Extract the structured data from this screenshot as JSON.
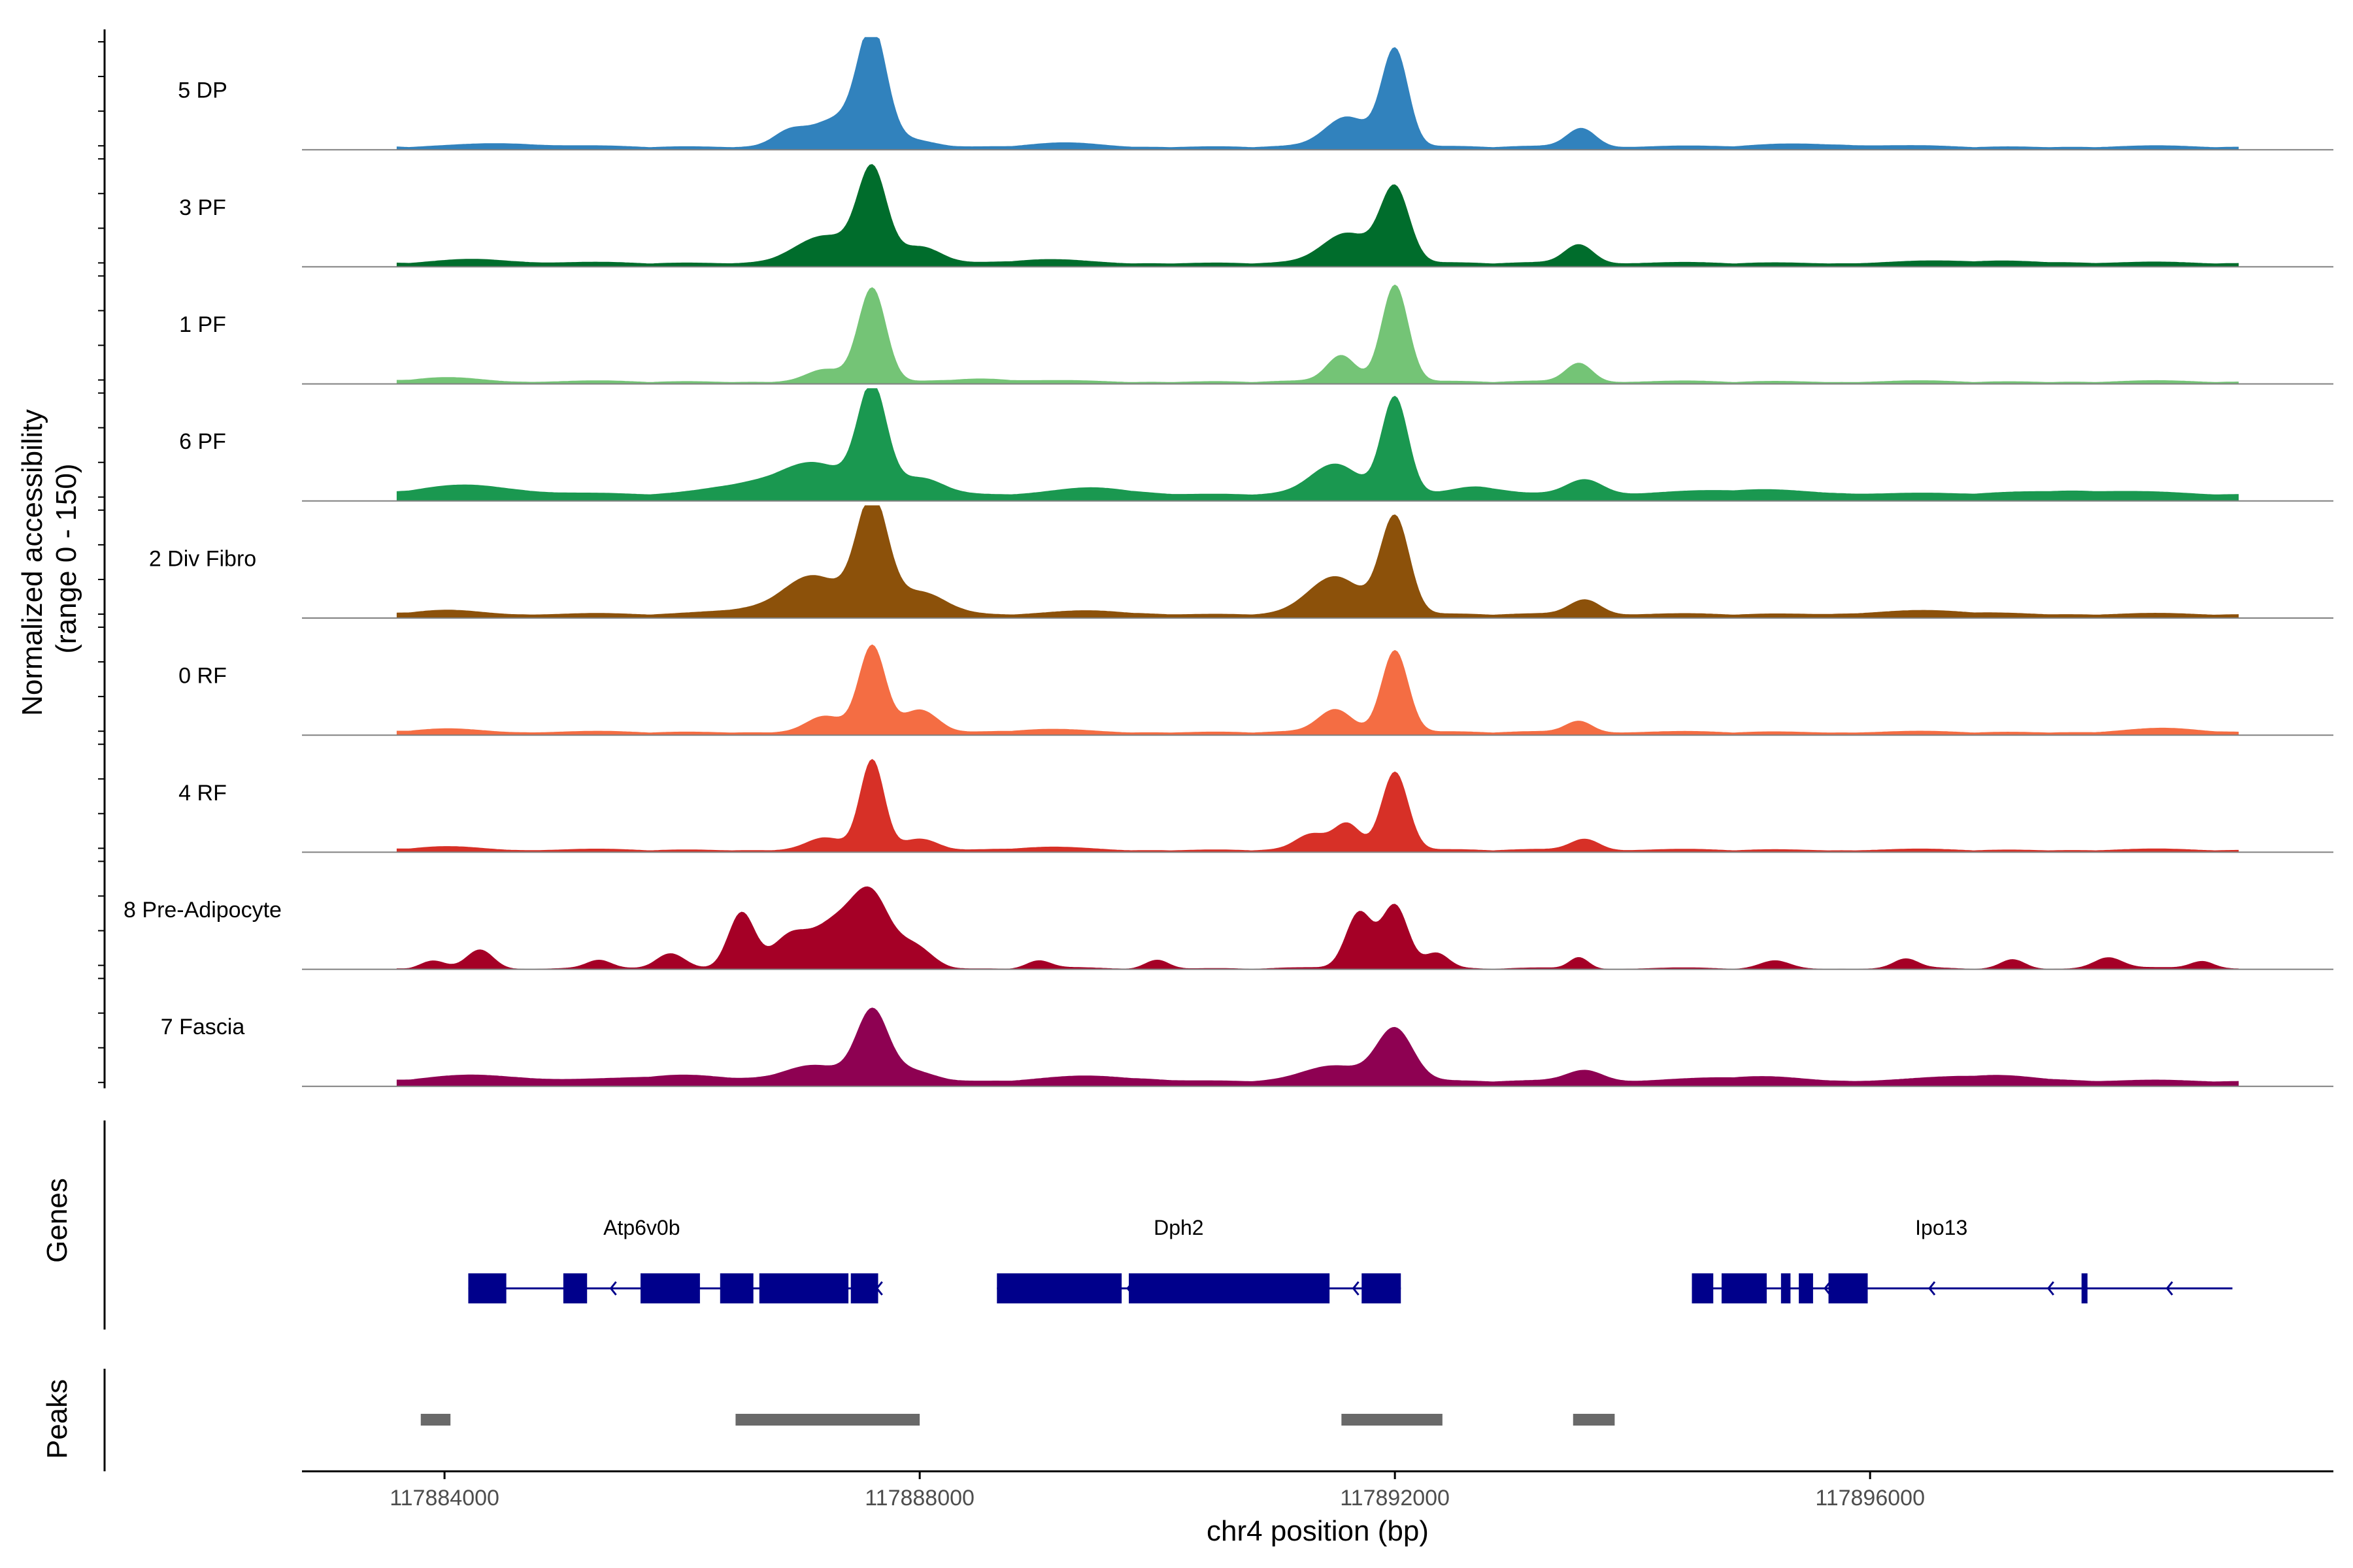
{
  "chart_data": {
    "type": "area",
    "title": "",
    "ylabel_line1": "Normalized accessibility",
    "ylabel_line2": "(range 0 - 150)",
    "xlabel": "chr4 position (bp)",
    "xlim": [
      117882800,
      117899900
    ],
    "ylim": [
      0,
      150
    ],
    "x_ticks": [
      {
        "value": 117884000,
        "label": "117884000"
      },
      {
        "value": 117888000,
        "label": "117888000"
      },
      {
        "value": 117892000,
        "label": "117892000"
      },
      {
        "value": 117896000,
        "label": "117896000"
      }
    ],
    "coverage_window": [
      117883600,
      117899100
    ],
    "series": [
      {
        "name": "5 DP",
        "color": "#3182bd",
        "baseline": 3,
        "peaks": [
          [
            117887600,
            150,
            120
          ],
          [
            117887300,
            35,
            200
          ],
          [
            117886900,
            20,
            140
          ],
          [
            117887900,
            10,
            200
          ],
          [
            117892000,
            130,
            110
          ],
          [
            117891600,
            40,
            180
          ],
          [
            117893570,
            25,
            120
          ],
          [
            117884500,
            5,
            300
          ],
          [
            117889200,
            4,
            300
          ],
          [
            117895500,
            4,
            400
          ]
        ]
      },
      {
        "name": "3 PF",
        "color": "#006d2c",
        "baseline": 4,
        "peaks": [
          [
            117887600,
            120,
            120
          ],
          [
            117887200,
            35,
            250
          ],
          [
            117888000,
            22,
            180
          ],
          [
            117892000,
            100,
            120
          ],
          [
            117891600,
            40,
            200
          ],
          [
            117893550,
            25,
            120
          ],
          [
            117884300,
            5,
            300
          ],
          [
            117889000,
            4,
            300
          ],
          [
            117897000,
            3,
            500
          ]
        ]
      },
      {
        "name": "1 PF",
        "color": "#74c476",
        "baseline": 2,
        "peaks": [
          [
            117887600,
            125,
            115
          ],
          [
            117887200,
            15,
            150
          ],
          [
            117892000,
            130,
            110
          ],
          [
            117891550,
            35,
            120
          ],
          [
            117893550,
            25,
            110
          ],
          [
            117884000,
            5,
            300
          ],
          [
            117888500,
            4,
            300
          ]
        ]
      },
      {
        "name": "6 PF",
        "color": "#1a9850",
        "baseline": 8,
        "peaks": [
          [
            117887600,
            140,
            120
          ],
          [
            117887100,
            40,
            280
          ],
          [
            117888000,
            22,
            200
          ],
          [
            117892000,
            130,
            110
          ],
          [
            117891500,
            40,
            200
          ],
          [
            117892700,
            10,
            200
          ],
          [
            117893600,
            20,
            150
          ],
          [
            117884200,
            12,
            400
          ],
          [
            117886500,
            12,
            300
          ],
          [
            117889500,
            8,
            300
          ],
          [
            117895000,
            6,
            500
          ],
          [
            117897700,
            5,
            500
          ]
        ]
      },
      {
        "name": "2 Div Fibro",
        "color": "#8c510a",
        "baseline": 4,
        "peaks": [
          [
            117887600,
            150,
            130
          ],
          [
            117887100,
            50,
            250
          ],
          [
            117888000,
            30,
            220
          ],
          [
            117892000,
            130,
            120
          ],
          [
            117891500,
            50,
            220
          ],
          [
            117893600,
            20,
            130
          ],
          [
            117884000,
            5,
            300
          ],
          [
            117886500,
            6,
            300
          ],
          [
            117889500,
            4,
            300
          ],
          [
            117896500,
            4,
            500
          ]
        ]
      },
      {
        "name": "0 RF",
        "color": "#f46d43",
        "baseline": 3,
        "peaks": [
          [
            117887600,
            115,
            110
          ],
          [
            117887200,
            20,
            150
          ],
          [
            117888000,
            30,
            150
          ],
          [
            117892000,
            110,
            110
          ],
          [
            117891500,
            30,
            140
          ],
          [
            117893550,
            15,
            110
          ],
          [
            117884000,
            4,
            300
          ],
          [
            117889000,
            3,
            300
          ],
          [
            117898500,
            4,
            300
          ]
        ]
      },
      {
        "name": "4 RF",
        "color": "#d73027",
        "baseline": 2,
        "peaks": [
          [
            117887600,
            120,
            100
          ],
          [
            117887200,
            15,
            150
          ],
          [
            117888000,
            15,
            150
          ],
          [
            117892000,
            105,
            110
          ],
          [
            117891600,
            35,
            110
          ],
          [
            117891300,
            20,
            130
          ],
          [
            117893600,
            15,
            120
          ],
          [
            117884000,
            4,
            300
          ],
          [
            117889000,
            3,
            300
          ]
        ]
      },
      {
        "name": "8 Pre-Adipocyte",
        "color": "#a50026",
        "baseline": 0,
        "peaks": [
          [
            117887600,
            85,
            150
          ],
          [
            117887300,
            60,
            200
          ],
          [
            117886900,
            40,
            150
          ],
          [
            117886500,
            75,
            110
          ],
          [
            117885900,
            20,
            120
          ],
          [
            117884300,
            25,
            110
          ],
          [
            117887950,
            30,
            150
          ],
          [
            117892000,
            85,
            110
          ],
          [
            117891700,
            75,
            110
          ],
          [
            117892350,
            20,
            100
          ],
          [
            117893550,
            15,
            80
          ],
          [
            117883900,
            10,
            100
          ],
          [
            117885300,
            10,
            100
          ],
          [
            117889000,
            10,
            100
          ],
          [
            117890000,
            12,
            100
          ],
          [
            117895200,
            10,
            120
          ],
          [
            117896300,
            12,
            100
          ],
          [
            117897200,
            12,
            100
          ],
          [
            117898000,
            15,
            120
          ],
          [
            117898800,
            10,
            100
          ]
        ]
      },
      {
        "name": "7 Fascia",
        "color": "#8e0152",
        "baseline": 6,
        "peaks": [
          [
            117887600,
            90,
            130
          ],
          [
            117887100,
            20,
            250
          ],
          [
            117887900,
            15,
            200
          ],
          [
            117892000,
            70,
            150
          ],
          [
            117891500,
            20,
            250
          ],
          [
            117893600,
            15,
            150
          ],
          [
            117884300,
            8,
            400
          ],
          [
            117886000,
            8,
            400
          ],
          [
            117889500,
            6,
            400
          ],
          [
            117895000,
            6,
            400
          ],
          [
            117897000,
            8,
            400
          ]
        ]
      }
    ],
    "genes": [
      {
        "name": "Atp6v0b",
        "label_pos": 117885660,
        "start": 117884200,
        "end": 117887650,
        "exons": [
          [
            117884200,
            117884520
          ],
          [
            117885000,
            117885200
          ],
          [
            117885650,
            117886150
          ],
          [
            117886320,
            117886600
          ],
          [
            117886650,
            117887400
          ],
          [
            117887420,
            117887650
          ]
        ],
        "arrows": [
          117885400,
          117887640
        ]
      },
      {
        "name": "Dph2",
        "label_pos": 117890180,
        "start": 117888650,
        "end": 117892050,
        "exons": [
          [
            117888650,
            117889700
          ],
          [
            117889760,
            117891450
          ],
          [
            117891720,
            117892050
          ]
        ],
        "arrows": [
          117889750,
          117891650
        ]
      },
      {
        "name": "Ipo13",
        "label_pos": 117896600,
        "start": 117894500,
        "end": 117899050,
        "exons": [
          [
            117894500,
            117894680
          ],
          [
            117894750,
            117895130
          ],
          [
            117895250,
            117895330
          ],
          [
            117895400,
            117895520
          ],
          [
            117895650,
            117895980
          ],
          [
            117897780,
            117897830
          ]
        ],
        "arrows": [
          117895620,
          117896500,
          117897500,
          117898500
        ]
      }
    ],
    "peaks_track": [
      [
        117883800,
        117884050
      ],
      [
        117886450,
        117888000
      ],
      [
        117891550,
        117892400
      ],
      [
        117893500,
        117893850
      ]
    ],
    "panel_labels": {
      "genes": "Genes",
      "peaks": "Peaks"
    }
  },
  "colors": {
    "gene": "#00008b",
    "peak": "#696969",
    "axis": "#000000",
    "baseline": "#808080"
  }
}
